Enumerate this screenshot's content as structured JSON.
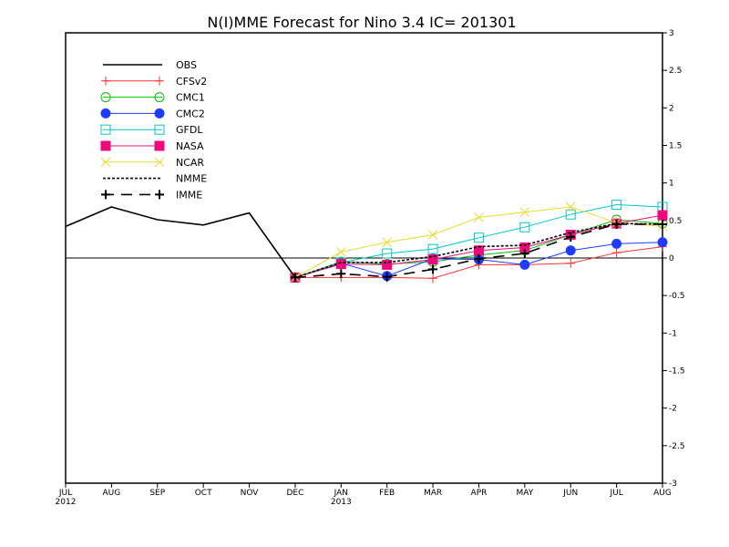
{
  "chart_data": {
    "type": "line",
    "title": "N(I)MME Forecast for Nino 3.4  IC= 201301",
    "x": [
      "JUL",
      "AUG",
      "SEP",
      "OCT",
      "NOV",
      "DEC",
      "JAN",
      "FEB",
      "MAR",
      "APR",
      "MAY",
      "JUN",
      "JUL",
      "AUG"
    ],
    "x_year_labels": {
      "0": "2012",
      "6": "2013"
    },
    "ylim": [
      -3,
      3
    ],
    "yticks": [
      "3",
      "2.5",
      "2",
      "1.5",
      "1",
      "0.5",
      "0",
      "-0.5",
      "-1",
      "-1.5",
      "-2",
      "-2.5",
      "-3"
    ],
    "legend_position": "top-left",
    "series": [
      {
        "name": "OBS",
        "color": "#000000",
        "marker": "none",
        "dash": "solid",
        "values": [
          0.42,
          0.68,
          0.51,
          0.44,
          0.6,
          -0.26,
          null,
          null,
          null,
          null,
          null,
          null,
          null,
          null
        ]
      },
      {
        "name": "CFSv2",
        "color": "#ff3030",
        "marker": "plus",
        "dash": "solid",
        "values": [
          null,
          null,
          null,
          null,
          null,
          -0.26,
          -0.26,
          -0.26,
          -0.27,
          -0.09,
          -0.09,
          -0.07,
          0.07,
          0.15
        ]
      },
      {
        "name": "CMC1",
        "color": "#00c000",
        "marker": "open-circle",
        "dash": "solid",
        "values": [
          null,
          null,
          null,
          null,
          null,
          -0.26,
          -0.05,
          -0.08,
          -0.05,
          0.04,
          0.1,
          0.31,
          0.51,
          0.46
        ]
      },
      {
        "name": "CMC2",
        "color": "#1e3cff",
        "marker": "filled-circle",
        "dash": "solid",
        "values": [
          null,
          null,
          null,
          null,
          null,
          -0.26,
          -0.07,
          -0.24,
          -0.01,
          -0.02,
          -0.09,
          0.1,
          0.19,
          0.21
        ]
      },
      {
        "name": "GFDL",
        "color": "#00c8c8",
        "marker": "open-square",
        "dash": "solid",
        "values": [
          null,
          null,
          null,
          null,
          null,
          -0.26,
          -0.06,
          0.06,
          0.12,
          0.27,
          0.41,
          0.58,
          0.71,
          0.68
        ]
      },
      {
        "name": "NASA",
        "color": "#f0087c",
        "marker": "filled-square",
        "dash": "solid",
        "values": [
          null,
          null,
          null,
          null,
          null,
          -0.26,
          -0.08,
          -0.09,
          -0.02,
          0.1,
          0.14,
          0.31,
          0.46,
          0.57
        ]
      },
      {
        "name": "NCAR",
        "color": "#e6dc32",
        "marker": "x",
        "dash": "solid",
        "values": [
          null,
          null,
          null,
          null,
          null,
          -0.26,
          0.08,
          0.21,
          0.31,
          0.54,
          0.61,
          0.68,
          0.47,
          0.42
        ]
      },
      {
        "name": "NMME",
        "color": "#000000",
        "marker": "none",
        "dash": "dotted",
        "values": [
          null,
          null,
          null,
          null,
          null,
          -0.26,
          -0.06,
          -0.06,
          0.02,
          0.15,
          0.17,
          0.34,
          0.46,
          0.45
        ]
      },
      {
        "name": "IMME",
        "color": "#000000",
        "marker": "plus",
        "dash": "long-dash",
        "values": [
          null,
          null,
          null,
          null,
          null,
          -0.26,
          -0.21,
          -0.25,
          -0.15,
          -0.01,
          0.06,
          0.28,
          0.45,
          0.45
        ]
      }
    ]
  }
}
